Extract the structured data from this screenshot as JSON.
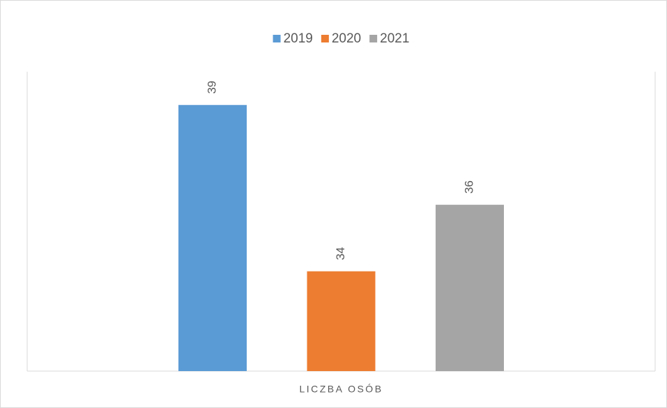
{
  "chart_data": {
    "type": "bar",
    "categories": [
      "LICZBA OSÓB"
    ],
    "series": [
      {
        "name": "2019",
        "color": "#5b9bd5",
        "values": [
          39
        ]
      },
      {
        "name": "2020",
        "color": "#ed7d31",
        "values": [
          34
        ]
      },
      {
        "name": "2021",
        "color": "#a5a5a5",
        "values": [
          36
        ]
      }
    ],
    "ylim": [
      31,
      40
    ],
    "legend": "top"
  }
}
